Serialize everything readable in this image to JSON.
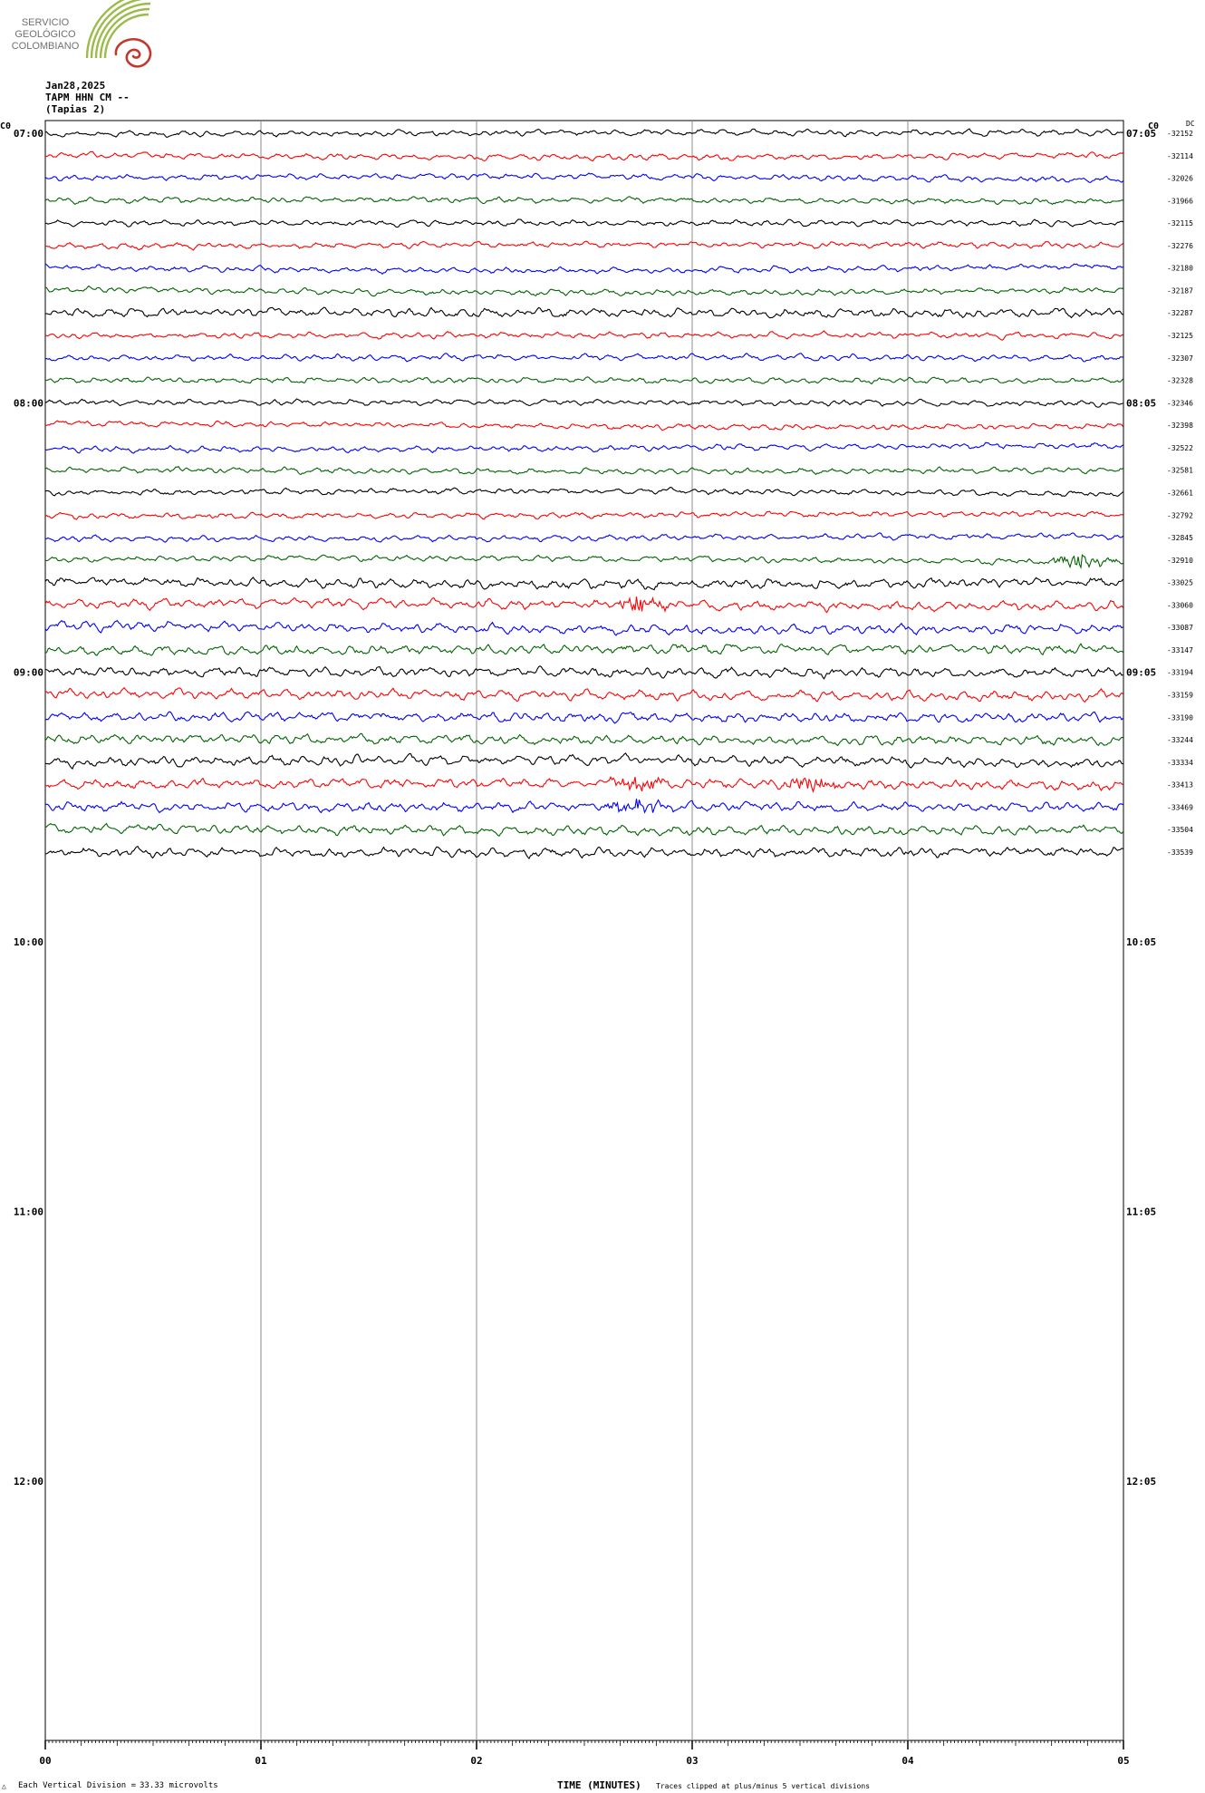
{
  "logo": {
    "lines": [
      "SERVICIO",
      "GEOLÓGICO",
      "COLOMBIANO"
    ],
    "colors": {
      "green": "#8dae3f",
      "red": "#c0392b"
    }
  },
  "header": {
    "date": "Jan28,2025",
    "station": "TAPM HHN CM --",
    "location": "(Tapias 2)",
    "left_edge_label": "C0",
    "right_edge_label": "C0",
    "dc_label": "DC"
  },
  "footer": {
    "scale_prefix": "Each Vertical Division =",
    "scale_value": "33.33 microvolts",
    "axis_title": "TIME (MINUTES)",
    "clip_note": "Traces clipped at plus/minus 5 vertical divisions",
    "corner_mark": "△"
  },
  "chart_data": {
    "type": "line",
    "subtype": "helicorder",
    "xlabel": "TIME (MINUTES)",
    "x_ticks": [
      "00",
      "01",
      "02",
      "03",
      "04",
      "05"
    ],
    "xlim": [
      0,
      5
    ],
    "grid": "vertical lines at each minute",
    "left_hour_labels": [
      "07:00",
      "08:00",
      "09:00",
      "10:00",
      "11:00",
      "12:00"
    ],
    "right_hour_labels": [
      "07:05",
      "08:05",
      "09:05",
      "10:05",
      "11:05",
      "12:05"
    ],
    "rows_per_hour": 12,
    "trace_colors": [
      "#000000",
      "#ff0000",
      "#0000ff",
      "#006400"
    ],
    "dc_offsets": [
      -32152,
      -32114,
      -32026,
      -31966,
      -32115,
      -32276,
      -32180,
      -32187,
      -32287,
      -32125,
      -32307,
      -32328,
      -32346,
      -32398,
      -32522,
      -32581,
      -32661,
      -32792,
      -32845,
      -32910,
      -33025,
      -33060,
      -33087,
      -33147,
      -33194,
      -33159,
      -33190,
      -33244,
      -33334,
      -33413,
      -33469,
      -33504,
      -33539
    ],
    "events": [
      {
        "row": 19,
        "minute": 4.8,
        "note": "small burst"
      },
      {
        "row": 21,
        "minute": 2.75,
        "note": "burst"
      },
      {
        "row": 29,
        "minute": 2.75,
        "note": "spike"
      },
      {
        "row": 29,
        "minute": 3.55,
        "note": "burst"
      },
      {
        "row": 30,
        "minute": 2.75,
        "note": "spike"
      }
    ]
  }
}
